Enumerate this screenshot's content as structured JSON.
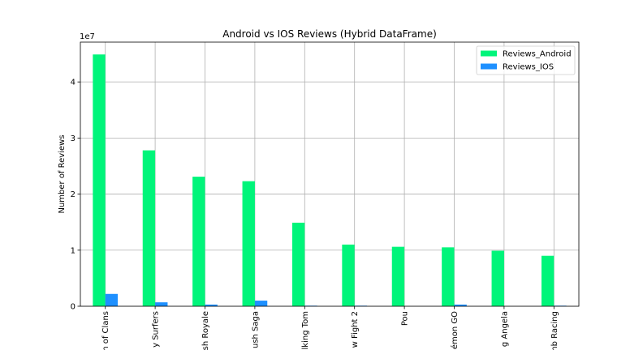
{
  "chart_data": {
    "type": "bar",
    "title": "Android vs IOS Reviews (Hybrid DataFrame)",
    "y_label": "Number of Reviews",
    "y_offset_label": "1e7",
    "categories": [
      "n of Clans",
      "y Surfers",
      "sh Royale",
      "ush Saga",
      "lking Tom",
      "w Fight 2",
      "Pou",
      "émon GO",
      "g Angela",
      "nb Racing"
    ],
    "series": [
      {
        "name": "Reviews_Android",
        "color": "#00f57a",
        "values": [
          4.49,
          2.78,
          2.31,
          2.23,
          1.49,
          1.1,
          1.06,
          1.05,
          0.99,
          0.9
        ]
      },
      {
        "name": "Reviews_IOS",
        "color": "#1e90ff",
        "values": [
          0.22,
          0.07,
          0.03,
          0.1,
          0.01,
          0.01,
          0.0,
          0.03,
          0.0,
          0.01
        ]
      }
    ],
    "ylim": [
      0,
      4.71
    ],
    "yticks": [
      0,
      1,
      2,
      3,
      4
    ],
    "grid": true,
    "legend": "upper-right"
  }
}
